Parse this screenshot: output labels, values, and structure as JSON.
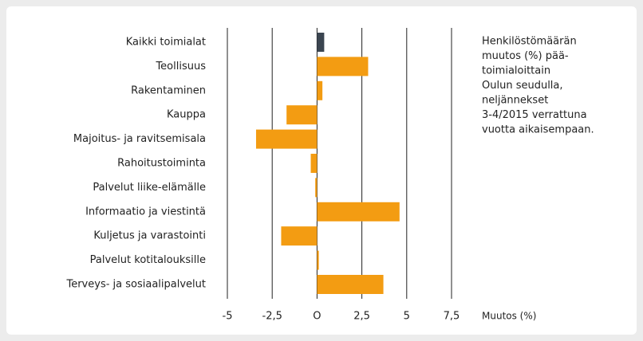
{
  "chart_data": {
    "type": "hbar",
    "categories": [
      "Kaikki toimialat",
      "Teollisuus",
      "Rakentaminen",
      "Kauppa",
      "Majoitus- ja ravitsemisala",
      "Rahoitustoiminta",
      "Palvelut liike-elämälle",
      "Informaatio ja viestintä",
      "Kuljetus ja varastointi",
      "Palvelut kotitalouksille",
      "Terveys- ja sosiaalipalvelut"
    ],
    "values": [
      0.4,
      2.85,
      0.3,
      -1.7,
      -3.4,
      -0.35,
      -0.1,
      4.6,
      -2.0,
      0.1,
      3.7
    ],
    "colors": [
      "#3b4550",
      "#f39c12",
      "#f39c12",
      "#f39c12",
      "#f39c12",
      "#f39c12",
      "#f39c12",
      "#f39c12",
      "#f39c12",
      "#f39c12",
      "#f39c12"
    ],
    "xlim": [
      -5,
      7.5
    ],
    "xticks": [
      -5,
      {
        "value": -2.5,
        "label": "-2,5"
      },
      {
        "value": 0,
        "label": "O"
      },
      {
        "value": 2.5,
        "label": "2,5"
      },
      5,
      {
        "value": 7.5,
        "label": "7,5"
      }
    ],
    "xlabel": "Muutos (%)",
    "grid": true,
    "annotation": [
      "Henkilöstömäärän",
      "muutos (%) pää-",
      "toimialoittain",
      "Oulun seudulla,",
      "neljännekset",
      "3-4/2015  verrattuna",
      "vuotta aikaisempaan."
    ]
  }
}
